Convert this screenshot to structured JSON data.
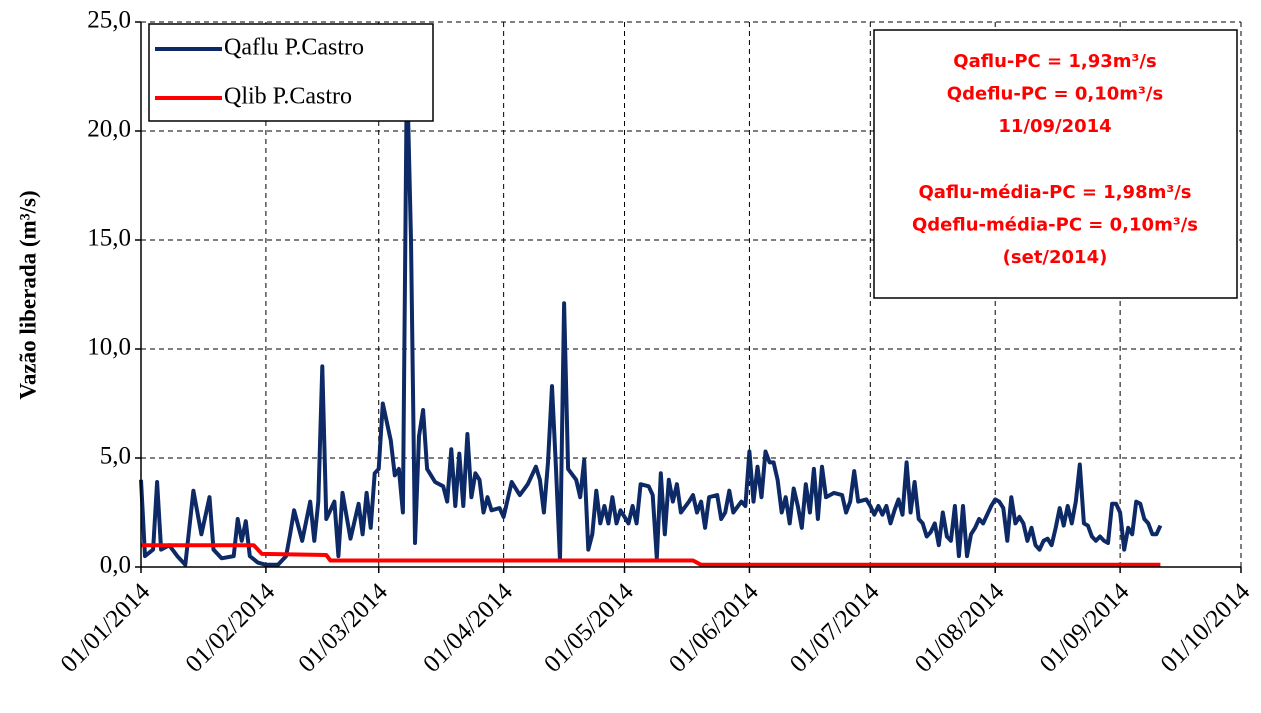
{
  "chart_data": {
    "type": "line",
    "ylabel": "Vazão liberada  (m³/s)",
    "ylim": [
      0,
      25
    ],
    "yticks": [
      {
        "value": 0,
        "label": "0,0"
      },
      {
        "value": 5,
        "label": "5,0"
      },
      {
        "value": 10,
        "label": "10,0"
      },
      {
        "value": 15,
        "label": "15,0"
      },
      {
        "value": 20,
        "label": "20,0"
      },
      {
        "value": 25,
        "label": "25,0"
      }
    ],
    "xlim": [
      "01/01/2014",
      "01/10/2014"
    ],
    "xticks": [
      "01/01/2014",
      "01/02/2014",
      "01/03/2014",
      "01/04/2014",
      "01/05/2014",
      "01/06/2014",
      "01/07/2014",
      "01/08/2014",
      "01/09/2014",
      "01/10/2014"
    ],
    "grid": true,
    "legend": "upper left",
    "annotation": [
      [
        "Qaflu-PC = 1,93m³/s",
        "Qdeflu-PC = 0,10m³/s",
        "11/09/2014"
      ],
      [
        "Qaflu-média-PC = 1,98m³/s",
        "Qdeflu-média-PC = 0,10m³/s",
        "(set/2014)"
      ]
    ],
    "annotation_color": "#ff0000",
    "series": [
      {
        "name": "Qaflu P.Castro",
        "color": "#0d2a66",
        "x": [
          "01/01/2014",
          "02/01/2014",
          "04/01/2014",
          "05/01/2014",
          "06/01/2014",
          "08/01/2014",
          "10/01/2014",
          "12/01/2014",
          "14/01/2014",
          "16/01/2014",
          "18/01/2014",
          "19/01/2014",
          "21/01/2014",
          "24/01/2014",
          "25/01/2014",
          "26/01/2014",
          "27/01/2014",
          "28/01/2014",
          "30/01/2014",
          "01/02/2014",
          "04/02/2014",
          "06/02/2014",
          "07/02/2014",
          "08/02/2014",
          "10/02/2014",
          "12/02/2014",
          "13/02/2014",
          "14/02/2014",
          "15/02/2014",
          "16/02/2014",
          "18/02/2014",
          "19/02/2014",
          "20/02/2014",
          "22/02/2014",
          "24/02/2014",
          "25/02/2014",
          "26/02/2014",
          "27/02/2014",
          "28/02/2014",
          "01/03/2014",
          "02/03/2014",
          "04/03/2014",
          "05/03/2014",
          "06/03/2014",
          "07/03/2014",
          "08/03/2014",
          "09/03/2014",
          "10/03/2014",
          "11/03/2014",
          "12/03/2014",
          "13/03/2014",
          "15/03/2014",
          "17/03/2014",
          "18/03/2014",
          "19/03/2014",
          "20/03/2014",
          "21/03/2014",
          "22/03/2014",
          "23/03/2014",
          "24/03/2014",
          "25/03/2014",
          "26/03/2014",
          "27/03/2014",
          "28/03/2014",
          "29/03/2014",
          "31/03/2014",
          "01/04/2014",
          "03/04/2014",
          "05/04/2014",
          "07/04/2014",
          "09/04/2014",
          "10/04/2014",
          "11/04/2014",
          "12/04/2014",
          "13/04/2014",
          "14/04/2014",
          "15/04/2014",
          "16/04/2014",
          "17/04/2014",
          "19/04/2014",
          "20/04/2014",
          "21/04/2014",
          "22/04/2014",
          "23/04/2014",
          "24/04/2014",
          "25/04/2014",
          "26/04/2014",
          "27/04/2014",
          "28/04/2014",
          "29/04/2014",
          "30/04/2014",
          "02/05/2014",
          "03/05/2014",
          "04/05/2014",
          "05/05/2014",
          "07/05/2014",
          "08/05/2014",
          "09/05/2014",
          "10/05/2014",
          "11/05/2014",
          "12/05/2014",
          "13/05/2014",
          "14/05/2014",
          "15/05/2014",
          "17/05/2014",
          "18/05/2014",
          "19/05/2014",
          "20/05/2014",
          "21/05/2014",
          "22/05/2014",
          "24/05/2014",
          "25/05/2014",
          "26/05/2014",
          "27/05/2014",
          "28/05/2014",
          "30/05/2014",
          "31/05/2014",
          "01/06/2014",
          "02/06/2014",
          "03/06/2014",
          "04/06/2014",
          "05/06/2014",
          "06/06/2014",
          "07/06/2014",
          "08/06/2014",
          "09/06/2014",
          "10/06/2014",
          "11/06/2014",
          "12/06/2014",
          "13/06/2014",
          "14/06/2014",
          "15/06/2014",
          "16/06/2014",
          "17/06/2014",
          "18/06/2014",
          "19/06/2014",
          "20/06/2014",
          "22/06/2014",
          "24/06/2014",
          "25/06/2014",
          "26/06/2014",
          "27/06/2014",
          "28/06/2014",
          "30/06/2014",
          "01/07/2014",
          "02/07/2014",
          "03/07/2014",
          "04/07/2014",
          "05/07/2014",
          "06/07/2014",
          "07/07/2014",
          "08/07/2014",
          "09/07/2014",
          "10/07/2014",
          "11/07/2014",
          "12/07/2014",
          "13/07/2014",
          "14/07/2014",
          "15/07/2014",
          "16/07/2014",
          "17/07/2014",
          "18/07/2014",
          "19/07/2014",
          "20/07/2014",
          "21/07/2014",
          "22/07/2014",
          "23/07/2014",
          "24/07/2014",
          "25/07/2014",
          "26/07/2014",
          "27/07/2014",
          "28/07/2014",
          "29/07/2014",
          "31/07/2014",
          "01/08/2014",
          "02/08/2014",
          "03/08/2014",
          "04/08/2014",
          "05/08/2014",
          "06/08/2014",
          "07/08/2014",
          "08/08/2014",
          "09/08/2014",
          "10/08/2014",
          "11/08/2014",
          "12/08/2014",
          "13/08/2014",
          "14/08/2014",
          "15/08/2014",
          "16/08/2014",
          "17/08/2014",
          "18/08/2014",
          "19/08/2014",
          "20/08/2014",
          "21/08/2014",
          "22/08/2014",
          "23/08/2014",
          "24/08/2014",
          "25/08/2014",
          "26/08/2014",
          "27/08/2014",
          "28/08/2014",
          "29/08/2014",
          "30/08/2014",
          "31/08/2014",
          "01/09/2014",
          "02/09/2014",
          "03/09/2014",
          "04/09/2014",
          "05/09/2014",
          "06/09/2014",
          "07/09/2014",
          "08/09/2014",
          "09/09/2014",
          "10/09/2014",
          "11/09/2014"
        ],
        "values": [
          4.0,
          0.5,
          0.8,
          3.9,
          0.8,
          1.0,
          0.5,
          0.1,
          3.5,
          1.5,
          3.2,
          0.8,
          0.4,
          0.5,
          2.2,
          1.2,
          2.1,
          0.5,
          0.2,
          0.1,
          0.1,
          0.5,
          1.5,
          2.6,
          1.2,
          3.0,
          1.2,
          3.0,
          9.2,
          2.2,
          3.0,
          0.5,
          3.4,
          1.3,
          2.9,
          1.5,
          3.4,
          1.8,
          4.3,
          4.5,
          7.5,
          5.8,
          4.2,
          4.5,
          2.5,
          23.0,
          15.0,
          1.1,
          6.0,
          7.2,
          4.5,
          3.9,
          3.7,
          3.0,
          5.4,
          2.8,
          5.2,
          2.8,
          6.1,
          3.2,
          4.3,
          4.0,
          2.5,
          3.2,
          2.6,
          2.7,
          2.3,
          3.9,
          3.3,
          3.8,
          4.6,
          4.0,
          2.5,
          4.8,
          8.3,
          4.5,
          0.3,
          12.1,
          4.5,
          4.0,
          3.2,
          4.9,
          0.8,
          1.5,
          3.5,
          2.0,
          2.8,
          2.0,
          3.2,
          2.0,
          2.6,
          2.0,
          2.8,
          2.0,
          3.8,
          3.7,
          3.3,
          0.4,
          4.3,
          1.5,
          4.0,
          3.0,
          3.8,
          2.5,
          3.0,
          3.3,
          2.5,
          3.0,
          1.8,
          3.2,
          3.3,
          2.2,
          2.5,
          3.5,
          2.5,
          3.0,
          2.8,
          5.3,
          3.0,
          4.6,
          3.2,
          5.3,
          4.8,
          4.8,
          4.0,
          2.5,
          3.2,
          2.0,
          3.6,
          2.8,
          1.8,
          3.8,
          2.5,
          4.5,
          2.2,
          4.6,
          3.2,
          3.4,
          3.3,
          2.5,
          3.0,
          4.4,
          3.0,
          3.1,
          2.8,
          2.4,
          2.8,
          2.4,
          2.8,
          2.0,
          2.6,
          3.1,
          2.4,
          4.8,
          2.5,
          3.9,
          2.2,
          2.0,
          1.4,
          1.6,
          2.0,
          1.0,
          2.5,
          1.4,
          1.2,
          2.8,
          0.5,
          2.8,
          0.5,
          1.5,
          1.8,
          2.2,
          2.0,
          2.8,
          3.1,
          3.0,
          2.7,
          1.2,
          3.2,
          2.0,
          2.3,
          2.0,
          1.2,
          1.8,
          1.0,
          0.8,
          1.2,
          1.3,
          1.0,
          1.8,
          2.7,
          1.9,
          2.8,
          2.0,
          3.0,
          4.7,
          2.0,
          1.9,
          1.4,
          1.2,
          1.4,
          1.2,
          1.1,
          2.9,
          2.9,
          2.5,
          0.8,
          1.8,
          1.5,
          3.0,
          2.9,
          2.2,
          2.0,
          1.5,
          1.5,
          1.9
        ]
      },
      {
        "name": "Qlib P.Castro",
        "color": "#ff0000",
        "x": [
          "01/01/2014",
          "29/01/2014",
          "31/01/2014",
          "16/02/2014",
          "17/02/2014",
          "18/05/2014",
          "20/05/2014",
          "11/09/2014"
        ],
        "values": [
          1.0,
          1.0,
          0.6,
          0.55,
          0.3,
          0.3,
          0.1,
          0.1
        ]
      }
    ]
  }
}
